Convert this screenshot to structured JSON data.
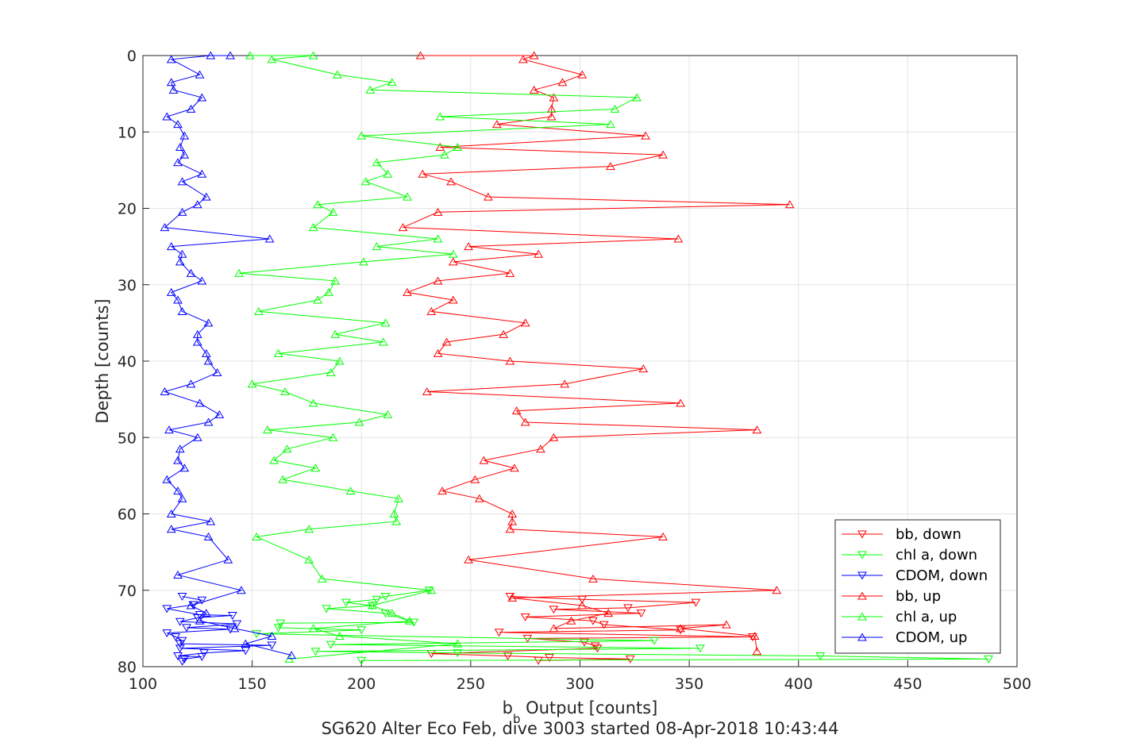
{
  "chart_data": {
    "type": "line",
    "title": "SG620 Alter Eco Feb, dive 3003 started 08-Apr-2018 10:43:44",
    "xlabel_main": "b",
    "xlabel_sub": "b",
    "xlabel_rest": " Output [counts]",
    "ylabel": "Depth [counts]",
    "xlim": [
      100,
      500
    ],
    "ylim": [
      0,
      80
    ],
    "y_reversed": true,
    "grid": true,
    "legend_position": "bottom-right",
    "x_ticks": [
      100,
      150,
      200,
      250,
      300,
      350,
      400,
      450,
      500
    ],
    "y_ticks": [
      0,
      10,
      20,
      30,
      40,
      50,
      60,
      70,
      80
    ],
    "series": [
      {
        "name": "bb, down",
        "color": "#ff0000",
        "marker": "triangle-down",
        "points": [
          [
            268,
            70.8
          ],
          [
            301,
            71.2
          ],
          [
            353,
            71.6
          ],
          [
            322,
            72.3
          ],
          [
            288,
            72.5
          ],
          [
            328,
            73.0
          ],
          [
            275,
            73.5
          ],
          [
            306,
            74.0
          ],
          [
            311,
            74.5
          ],
          [
            346,
            75.2
          ],
          [
            263,
            75.5
          ],
          [
            379,
            76.1
          ],
          [
            276,
            76.3
          ],
          [
            302,
            76.8
          ],
          [
            307,
            77.3
          ],
          [
            308,
            77.6
          ],
          [
            232,
            78.3
          ],
          [
            267,
            78.6
          ],
          [
            286,
            78.8
          ],
          [
            323,
            79.0
          ],
          [
            281,
            79.2
          ]
        ]
      },
      {
        "name": "chl a, down",
        "color": "#00ff00",
        "marker": "triangle-down",
        "points": [
          [
            231,
            70.0
          ],
          [
            211,
            70.8
          ],
          [
            207,
            71.2
          ],
          [
            193,
            71.6
          ],
          [
            205,
            72.0
          ],
          [
            184,
            72.4
          ],
          [
            211,
            73.0
          ],
          [
            224,
            74.2
          ],
          [
            163,
            74.3
          ],
          [
            162,
            74.9
          ],
          [
            200,
            75.2
          ],
          [
            152,
            75.7
          ],
          [
            334,
            76.6
          ],
          [
            186,
            77.1
          ],
          [
            355,
            77.6
          ],
          [
            179,
            78.0
          ],
          [
            244,
            78.2
          ],
          [
            410,
            78.6
          ],
          [
            487,
            79.0
          ],
          [
            200,
            79.2
          ]
        ]
      },
      {
        "name": "CDOM, down",
        "color": "#0000ff",
        "marker": "triangle-down",
        "points": [
          [
            118,
            70.8
          ],
          [
            127,
            71.3
          ],
          [
            123,
            71.9
          ],
          [
            111,
            72.4
          ],
          [
            126,
            73.2
          ],
          [
            141,
            73.3
          ],
          [
            125,
            73.6
          ],
          [
            117,
            74.1
          ],
          [
            143,
            74.4
          ],
          [
            120,
            74.9
          ],
          [
            140,
            75.1
          ],
          [
            111,
            75.6
          ],
          [
            115,
            76.1
          ],
          [
            118,
            76.6
          ],
          [
            117,
            77.0
          ],
          [
            159,
            77.2
          ],
          [
            117,
            77.6
          ],
          [
            147,
            77.9
          ],
          [
            128,
            78.2
          ],
          [
            116,
            78.6
          ],
          [
            127,
            78.7
          ],
          [
            119,
            79.0
          ],
          [
            118,
            79.3
          ]
        ]
      },
      {
        "name": "bb, up",
        "color": "#ff0000",
        "marker": "triangle-up",
        "points": [
          [
            227,
            0
          ],
          [
            279,
            0
          ],
          [
            274,
            0.5
          ],
          [
            301,
            2.5
          ],
          [
            292,
            3.5
          ],
          [
            279,
            4.5
          ],
          [
            288,
            5.5
          ],
          [
            287,
            7
          ],
          [
            287,
            8
          ],
          [
            262,
            9
          ],
          [
            330,
            10.5
          ],
          [
            236,
            12
          ],
          [
            338,
            13
          ],
          [
            314,
            14.5
          ],
          [
            228,
            15.5
          ],
          [
            241,
            16.5
          ],
          [
            258,
            18.5
          ],
          [
            396,
            19.5
          ],
          [
            235,
            20.5
          ],
          [
            219,
            22.5
          ],
          [
            345,
            24
          ],
          [
            249,
            25
          ],
          [
            281,
            26
          ],
          [
            242,
            27
          ],
          [
            268,
            28.5
          ],
          [
            235,
            29.5
          ],
          [
            221,
            31
          ],
          [
            242,
            32
          ],
          [
            232,
            33.5
          ],
          [
            275,
            35
          ],
          [
            265,
            36.5
          ],
          [
            239,
            37.5
          ],
          [
            235,
            39
          ],
          [
            268,
            40
          ],
          [
            329,
            41
          ],
          [
            293,
            43
          ],
          [
            230,
            44
          ],
          [
            346,
            45.5
          ],
          [
            271,
            46.5
          ],
          [
            275,
            48
          ],
          [
            381,
            49
          ],
          [
            288,
            50
          ],
          [
            282,
            51.5
          ],
          [
            256,
            53
          ],
          [
            270,
            54
          ],
          [
            252,
            55.5
          ],
          [
            237,
            57
          ],
          [
            254,
            58
          ],
          [
            269,
            60
          ],
          [
            269,
            61
          ],
          [
            268,
            62
          ],
          [
            338,
            63
          ],
          [
            249,
            66
          ],
          [
            306,
            68.5
          ],
          [
            390,
            70
          ],
          [
            269,
            71
          ],
          [
            301,
            72
          ],
          [
            313,
            73
          ],
          [
            296,
            74
          ],
          [
            288,
            75
          ],
          [
            367,
            74.5
          ],
          [
            346,
            75
          ],
          [
            380,
            76
          ],
          [
            381,
            78
          ]
        ]
      },
      {
        "name": "chl a, up",
        "color": "#00ff00",
        "marker": "triangle-up",
        "points": [
          [
            149,
            0
          ],
          [
            178,
            0
          ],
          [
            159,
            0.5
          ],
          [
            189,
            2.5
          ],
          [
            214,
            3.5
          ],
          [
            204,
            4.5
          ],
          [
            326,
            5.5
          ],
          [
            316,
            7
          ],
          [
            236,
            8
          ],
          [
            314,
            9
          ],
          [
            200,
            10.5
          ],
          [
            244,
            12
          ],
          [
            238,
            13
          ],
          [
            207,
            14
          ],
          [
            212,
            15.5
          ],
          [
            202,
            16.5
          ],
          [
            221,
            18.5
          ],
          [
            180,
            19.5
          ],
          [
            187,
            20.5
          ],
          [
            178,
            22.5
          ],
          [
            235,
            24
          ],
          [
            207,
            25
          ],
          [
            242,
            26
          ],
          [
            201,
            27
          ],
          [
            144,
            28.5
          ],
          [
            188,
            29.5
          ],
          [
            185,
            31
          ],
          [
            180,
            32
          ],
          [
            153,
            33.5
          ],
          [
            211,
            35
          ],
          [
            188,
            36.5
          ],
          [
            210,
            37.5
          ],
          [
            162,
            39
          ],
          [
            190,
            40
          ],
          [
            186,
            41.5
          ],
          [
            150,
            43
          ],
          [
            165,
            44
          ],
          [
            178,
            45.5
          ],
          [
            212,
            47
          ],
          [
            199,
            48
          ],
          [
            157,
            49
          ],
          [
            187,
            50
          ],
          [
            166,
            51.5
          ],
          [
            160,
            53
          ],
          [
            179,
            54
          ],
          [
            164,
            55.5
          ],
          [
            195,
            57
          ],
          [
            217,
            58
          ],
          [
            215,
            60
          ],
          [
            216,
            61
          ],
          [
            176,
            62
          ],
          [
            152,
            63
          ],
          [
            176,
            66
          ],
          [
            182,
            68.5
          ],
          [
            232,
            70
          ],
          [
            205,
            72
          ],
          [
            214,
            73
          ],
          [
            222,
            74
          ],
          [
            178,
            75
          ],
          [
            190,
            76
          ],
          [
            244,
            77
          ],
          [
            167,
            79
          ]
        ]
      },
      {
        "name": "CDOM, up",
        "color": "#0000ff",
        "marker": "triangle-up",
        "points": [
          [
            140,
            0
          ],
          [
            131,
            0
          ],
          [
            113,
            0.5
          ],
          [
            126,
            2.5
          ],
          [
            113,
            3.5
          ],
          [
            114,
            4.5
          ],
          [
            127,
            5.5
          ],
          [
            122,
            7
          ],
          [
            111,
            8
          ],
          [
            116,
            9
          ],
          [
            119,
            10.5
          ],
          [
            117,
            12
          ],
          [
            119,
            13
          ],
          [
            116,
            14
          ],
          [
            127,
            15.5
          ],
          [
            118,
            16.5
          ],
          [
            129,
            18.5
          ],
          [
            125,
            19.5
          ],
          [
            118,
            20.5
          ],
          [
            110,
            22.5
          ],
          [
            158,
            24
          ],
          [
            113,
            25
          ],
          [
            118,
            26
          ],
          [
            117,
            27
          ],
          [
            122,
            28.5
          ],
          [
            127,
            29.5
          ],
          [
            113,
            31
          ],
          [
            116,
            32
          ],
          [
            118,
            33.5
          ],
          [
            130,
            35
          ],
          [
            125,
            36.5
          ],
          [
            125,
            37.5
          ],
          [
            129,
            39
          ],
          [
            130,
            40
          ],
          [
            134,
            41.5
          ],
          [
            122,
            43
          ],
          [
            110,
            44
          ],
          [
            126,
            45.5
          ],
          [
            135,
            47
          ],
          [
            130,
            48
          ],
          [
            112,
            49
          ],
          [
            125,
            50
          ],
          [
            117,
            51.5
          ],
          [
            116,
            53
          ],
          [
            119,
            54
          ],
          [
            111,
            55.5
          ],
          [
            116,
            57
          ],
          [
            118,
            58
          ],
          [
            113,
            60
          ],
          [
            131,
            61
          ],
          [
            113,
            62
          ],
          [
            130,
            63
          ],
          [
            139,
            66
          ],
          [
            116,
            68
          ],
          [
            145,
            70
          ],
          [
            122,
            72
          ],
          [
            129,
            73
          ],
          [
            126,
            74
          ],
          [
            142,
            75
          ],
          [
            159,
            76
          ],
          [
            147,
            77
          ],
          [
            168,
            78.5
          ]
        ]
      }
    ]
  }
}
